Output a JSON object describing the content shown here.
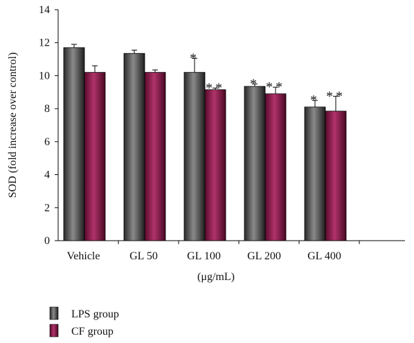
{
  "chart_data": {
    "type": "bar",
    "title": "",
    "ylabel": "SOD (fold increase over control)",
    "xlabel": "(μg/mL)",
    "ylim": [
      0,
      14
    ],
    "yticks": [
      "0",
      "2",
      "4",
      "6",
      "8",
      "10",
      "12",
      "14"
    ],
    "categories": [
      "Vehicle",
      "GL 50",
      "GL 100",
      "GL 200",
      "GL 400"
    ],
    "series": [
      {
        "name": "LPS group",
        "color": "#3a3a3a",
        "values": [
          11.7,
          11.35,
          10.2,
          9.35,
          8.1
        ],
        "errors": [
          0.2,
          0.2,
          0.85,
          0.15,
          0.4
        ],
        "significance": [
          "",
          "",
          "*",
          "*",
          "*"
        ]
      },
      {
        "name": "CF group",
        "color": "#7a1040",
        "values": [
          10.2,
          10.2,
          9.15,
          8.9,
          7.85
        ],
        "errors": [
          0.4,
          0.15,
          0.1,
          0.4,
          0.9
        ],
        "significance": [
          "",
          "",
          "**",
          "**",
          "**"
        ]
      }
    ],
    "legend": "bottom-left",
    "grid": false
  }
}
